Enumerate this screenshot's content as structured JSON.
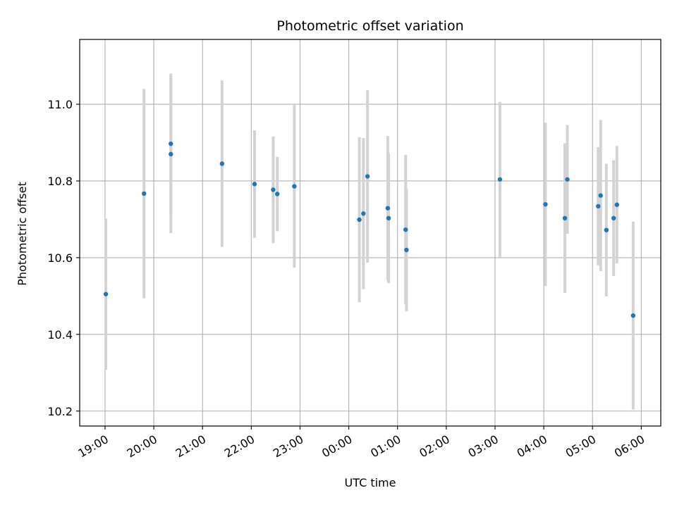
{
  "chart_data": {
    "type": "scatter",
    "title": "Photometric offset variation",
    "xlabel": "UTC time",
    "ylabel": "Photometric offset",
    "x_ticks": [
      "19:00",
      "20:00",
      "21:00",
      "22:00",
      "23:00",
      "00:00",
      "01:00",
      "02:00",
      "03:00",
      "04:00",
      "05:00",
      "06:00"
    ],
    "y_ticks": [
      "10.2",
      "10.4",
      "10.6",
      "10.8",
      "11.0"
    ],
    "xlim_hours": [
      18.48,
      30.4
    ],
    "ylim": [
      10.161,
      11.169
    ],
    "grid": true,
    "colors": {
      "marker": "#1f77b4",
      "errorbar": "#d3d3d3",
      "grid": "#b0b0b0"
    },
    "points": [
      {
        "t": "19:01",
        "y": 10.505,
        "err": 0.197
      },
      {
        "t": "19:48",
        "y": 10.767,
        "err": 0.273
      },
      {
        "t": "20:21",
        "y": 10.897,
        "err": 0.183
      },
      {
        "t": "20:21",
        "y": 10.87,
        "err": 0.206
      },
      {
        "t": "21:24",
        "y": 10.845,
        "err": 0.217
      },
      {
        "t": "22:04",
        "y": 10.792,
        "err": 0.14
      },
      {
        "t": "22:27",
        "y": 10.777,
        "err": 0.139
      },
      {
        "t": "22:32",
        "y": 10.766,
        "err": 0.097
      },
      {
        "t": "22:53",
        "y": 10.786,
        "err": 0.212
      },
      {
        "t": "00:13",
        "y": 10.699,
        "err": 0.215
      },
      {
        "t": "00:18",
        "y": 10.715,
        "err": 0.197
      },
      {
        "t": "00:23",
        "y": 10.812,
        "err": 0.225
      },
      {
        "t": "00:48",
        "y": 10.729,
        "err": 0.188
      },
      {
        "t": "00:49",
        "y": 10.703,
        "err": 0.169
      },
      {
        "t": "01:10",
        "y": 10.673,
        "err": 0.195
      },
      {
        "t": "01:11",
        "y": 10.62,
        "err": 0.16
      },
      {
        "t": "03:06",
        "y": 10.804,
        "err": 0.202
      },
      {
        "t": "04:02",
        "y": 10.739,
        "err": 0.213
      },
      {
        "t": "04:26",
        "y": 10.703,
        "err": 0.195
      },
      {
        "t": "04:29",
        "y": 10.804,
        "err": 0.142
      },
      {
        "t": "05:07",
        "y": 10.734,
        "err": 0.154
      },
      {
        "t": "05:10",
        "y": 10.762,
        "err": 0.197
      },
      {
        "t": "05:17",
        "y": 10.672,
        "err": 0.173
      },
      {
        "t": "05:26",
        "y": 10.703,
        "err": 0.151
      },
      {
        "t": "05:30",
        "y": 10.738,
        "err": 0.153
      },
      {
        "t": "05:50",
        "y": 10.449,
        "err": 0.245
      }
    ]
  }
}
